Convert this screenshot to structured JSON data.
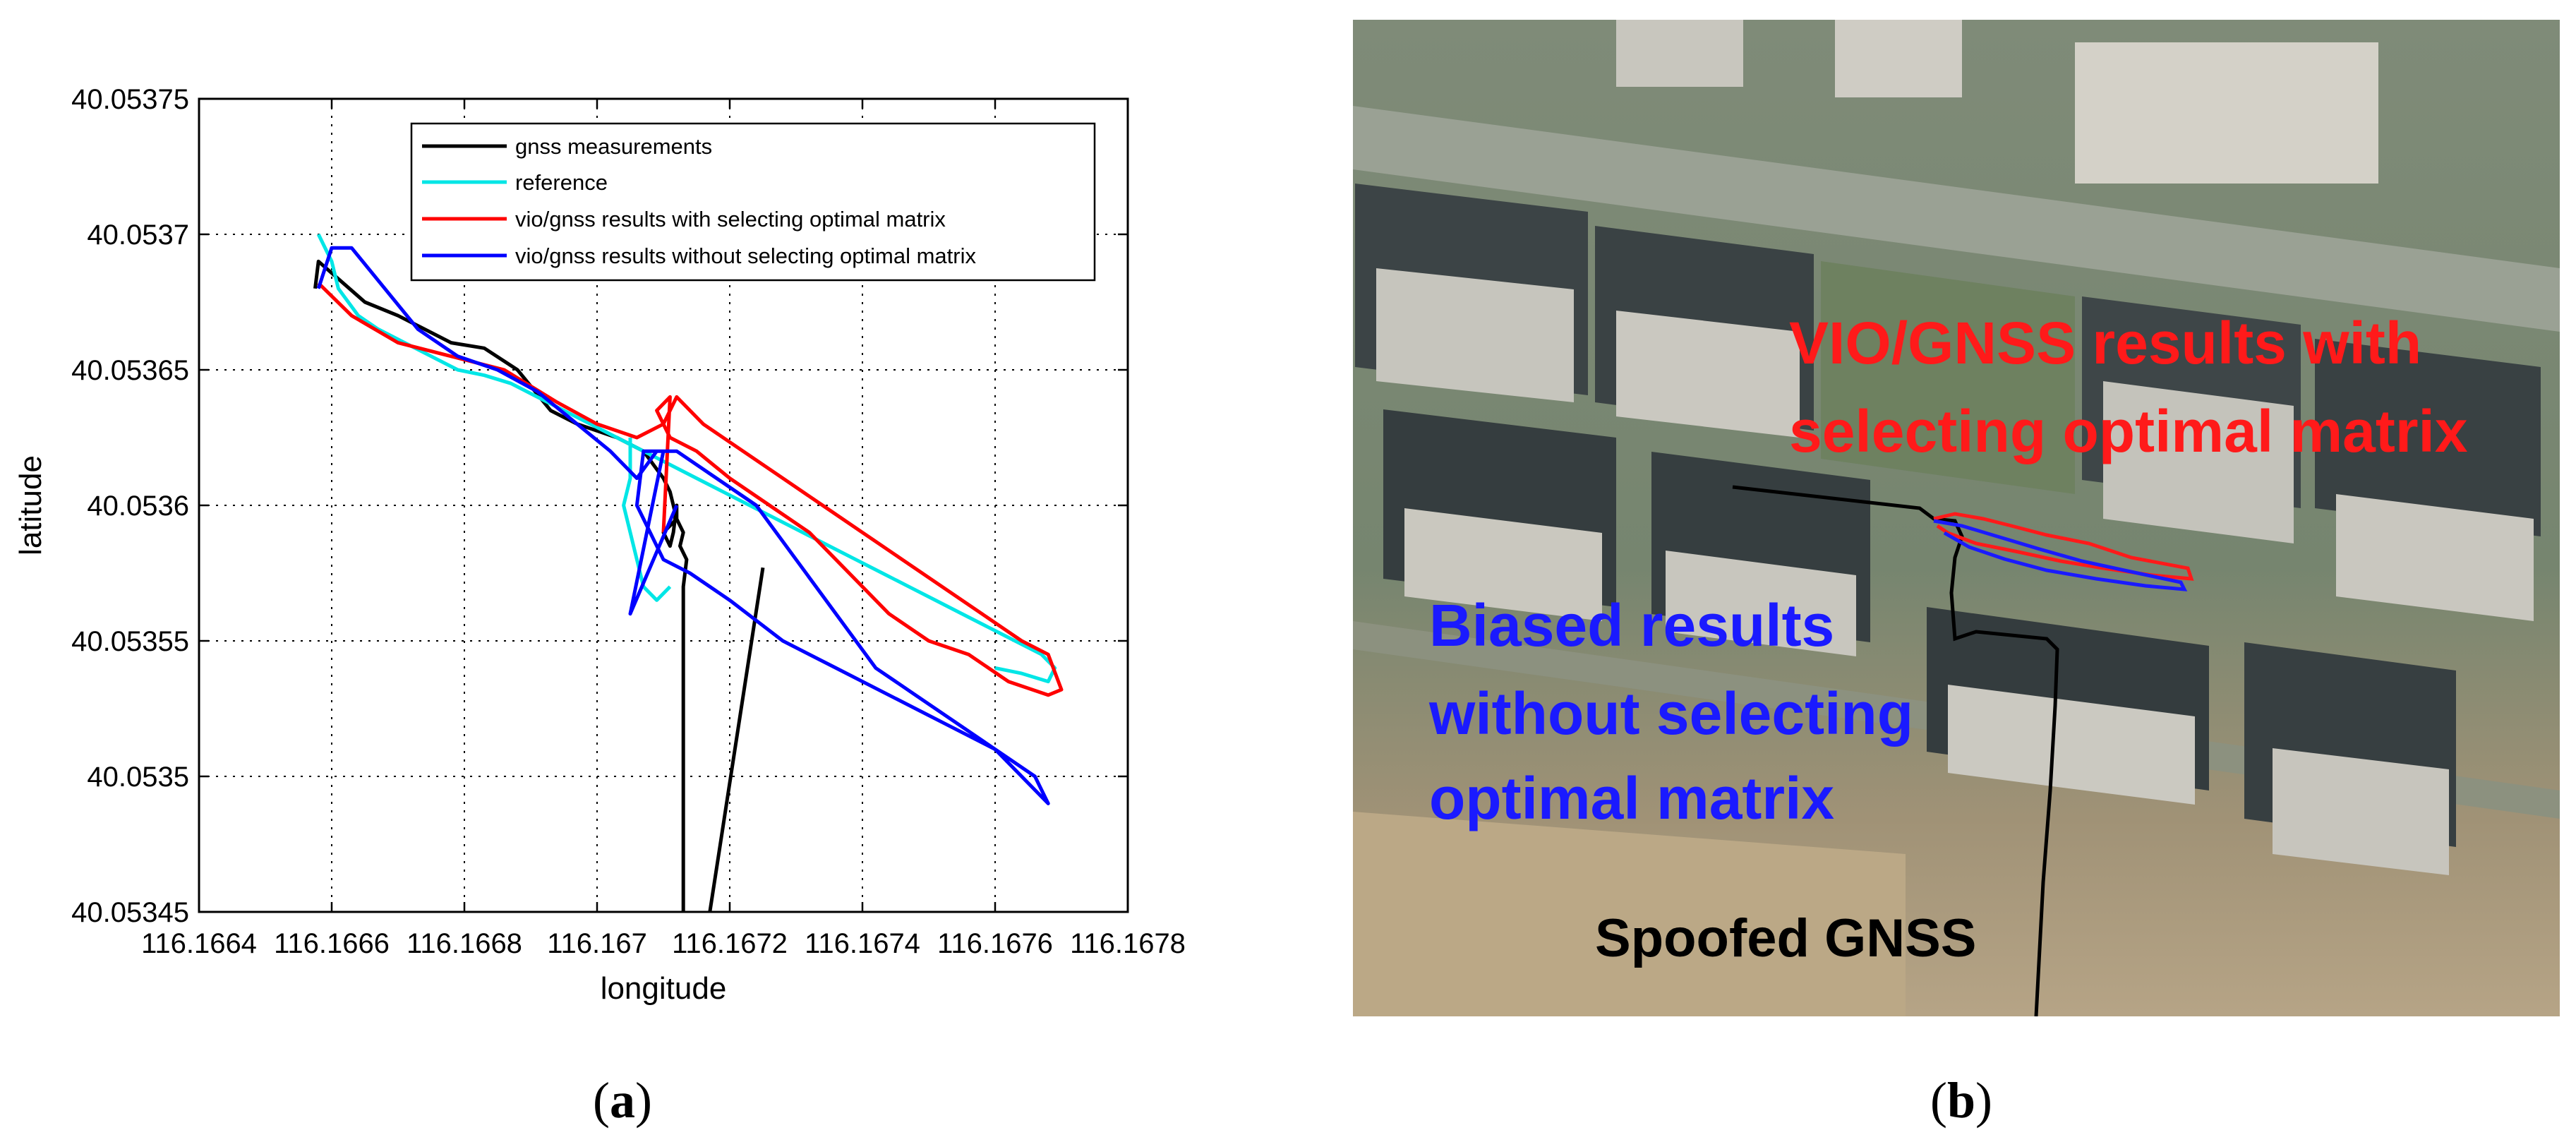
{
  "panels": {
    "a": {
      "label": "a"
    },
    "b": {
      "label": "b"
    }
  },
  "chart_data": [
    {
      "type": "line",
      "title": "",
      "xlabel": "longitude",
      "ylabel": "latitude",
      "xlim": [
        116.1664,
        116.1678
      ],
      "ylim": [
        40.05345,
        40.05375
      ],
      "xticks": [
        116.1664,
        116.1666,
        116.1668,
        116.167,
        116.1672,
        116.1674,
        116.1676,
        116.1678
      ],
      "xtick_labels": [
        "116.1664",
        "116.1666",
        "116.1668",
        "116.167",
        "116.1672",
        "116.1674",
        "116.1676",
        "116.1678"
      ],
      "yticks": [
        40.05345,
        40.0535,
        40.05355,
        40.0536,
        40.05365,
        40.0537,
        40.05375
      ],
      "ytick_labels": [
        "40.05345",
        "40.0535",
        "40.05355",
        "40.0536",
        "40.05365",
        "40.0537",
        "40.05375"
      ],
      "grid": true,
      "legend_position": "top-right",
      "series": [
        {
          "name": "gnss measurements",
          "color": "#000000",
          "x": [
            116.166575,
            116.16658,
            116.16665,
            116.1667,
            116.16674,
            116.16678,
            116.16683,
            116.16688,
            116.16693,
            116.16697,
            116.16703,
            116.16707,
            116.1671,
            116.16711,
            116.16712,
            116.1671,
            116.16711,
            116.167115,
            116.16712,
            116.16712,
            116.16713,
            116.167125,
            116.167135,
            116.16713,
            116.16713,
            116.16713,
            116.16713
          ],
          "y": [
            40.05368,
            40.05369,
            40.053675,
            40.05367,
            40.053665,
            40.05366,
            40.053658,
            40.05365,
            40.053635,
            40.05363,
            40.053625,
            40.05362,
            40.05361,
            40.053605,
            40.053595,
            40.05359,
            40.053585,
            40.05359,
            40.0536,
            40.053595,
            40.05359,
            40.053585,
            40.05358,
            40.05357,
            40.05355,
            40.0535,
            40.05345
          ],
          "x2": [
            116.16725,
            116.16717
          ],
          "y2": [
            40.053577,
            40.05345
          ]
        },
        {
          "name": "reference",
          "color": "#00e6e6",
          "x": [
            116.16658,
            116.1666,
            116.16661,
            116.16664,
            116.16667,
            116.16671,
            116.16675,
            116.16679,
            116.16683,
            116.16687,
            116.16691,
            116.16695,
            116.16699,
            116.16703,
            116.16707,
            116.16711,
            116.16715,
            116.16719,
            116.16723,
            116.16727,
            116.16731,
            116.16735,
            116.16739,
            116.16743,
            116.16747,
            116.16751,
            116.16755,
            116.16759,
            116.16763,
            116.16767,
            116.16769,
            116.16768,
            116.16764,
            116.1676
          ],
          "y": [
            40.0537,
            40.05369,
            40.05368,
            40.05367,
            40.053665,
            40.05366,
            40.053655,
            40.05365,
            40.053648,
            40.053645,
            40.05364,
            40.053635,
            40.05363,
            40.053625,
            40.05362,
            40.053615,
            40.05361,
            40.053605,
            40.0536,
            40.053595,
            40.05359,
            40.053585,
            40.05358,
            40.053575,
            40.05357,
            40.053565,
            40.05356,
            40.053555,
            40.05355,
            40.053545,
            40.05354,
            40.053535,
            40.053538,
            40.05354
          ],
          "x2": [
            116.16705,
            116.16705,
            116.16704,
            116.16705,
            116.16706,
            116.16707,
            116.16709,
            116.16711
          ],
          "y2": [
            40.053625,
            40.05361,
            40.0536,
            40.05359,
            40.05358,
            40.05357,
            40.053565,
            40.05357
          ]
        },
        {
          "name": "vio/gnss results with selecting optimal matrix",
          "color": "#ff0000",
          "x": [
            116.16658,
            116.16663,
            116.1667,
            116.16678,
            116.16686,
            116.16694,
            116.167,
            116.16706,
            116.1671,
            116.16712,
            116.16716,
            116.16722,
            116.16728,
            116.16734,
            116.1674,
            116.16746,
            116.16752,
            116.16758,
            116.16764,
            116.16768,
            116.1677,
            116.16768,
            116.16762,
            116.16756,
            116.1675,
            116.16744,
            116.16738,
            116.16732,
            116.16726,
            116.1672,
            116.16715,
            116.16711,
            116.16709,
            116.16711,
            116.1671
          ],
          "y": [
            40.053682,
            40.05367,
            40.05366,
            40.053655,
            40.05365,
            40.053638,
            40.05363,
            40.053625,
            40.05363,
            40.05364,
            40.05363,
            40.05362,
            40.05361,
            40.0536,
            40.05359,
            40.05358,
            40.05357,
            40.05356,
            40.05355,
            40.053545,
            40.053532,
            40.05353,
            40.053535,
            40.053545,
            40.05355,
            40.05356,
            40.053575,
            40.05359,
            40.0536,
            40.05361,
            40.05362,
            40.053625,
            40.053635,
            40.05364,
            40.05359
          ]
        },
        {
          "name": "vio/gnss results without selecting optimal matrix",
          "color": "#0000ff",
          "x": [
            116.16658,
            116.1666,
            116.16663,
            116.16668,
            116.16673,
            116.16679,
            116.16685,
            116.16691,
            116.16697,
            116.16702,
            116.16706,
            116.16709,
            116.16712,
            116.16718,
            116.16724,
            116.1673,
            116.16736,
            116.16742,
            116.16748,
            116.16754,
            116.1676,
            116.16766,
            116.16768,
            116.16766,
            116.1676,
            116.16752,
            116.16744,
            116.16736,
            116.16728,
            116.1672,
            116.16714,
            116.1671,
            116.16708,
            116.16706,
            116.16707,
            116.1671,
            116.16705,
            116.16712
          ],
          "y": [
            40.05368,
            40.053695,
            40.053695,
            40.05368,
            40.053665,
            40.053655,
            40.05365,
            40.053642,
            40.05363,
            40.05362,
            40.05361,
            40.05362,
            40.05362,
            40.05361,
            40.0536,
            40.05358,
            40.05356,
            40.05354,
            40.05353,
            40.05352,
            40.05351,
            40.0535,
            40.05349,
            40.053495,
            40.05351,
            40.05352,
            40.05353,
            40.05354,
            40.05355,
            40.053565,
            40.053575,
            40.05358,
            40.05359,
            40.0536,
            40.05362,
            40.05362,
            40.05356,
            40.0536
          ]
        }
      ]
    },
    {
      "type": "other",
      "description_free": true,
      "annotations": [
        {
          "text": "VIO/GNSS results with",
          "color": "#ff1a1a"
        },
        {
          "text": "selecting  optimal matrix",
          "color": "#ff1a1a"
        },
        {
          "text": "Biased results",
          "color": "#1a1aff"
        },
        {
          "text": "without selecting",
          "color": "#1a1aff"
        },
        {
          "text": "optimal matrix",
          "color": "#1a1aff"
        },
        {
          "text": "Spoofed GNSS",
          "color": "#000000"
        }
      ]
    }
  ]
}
